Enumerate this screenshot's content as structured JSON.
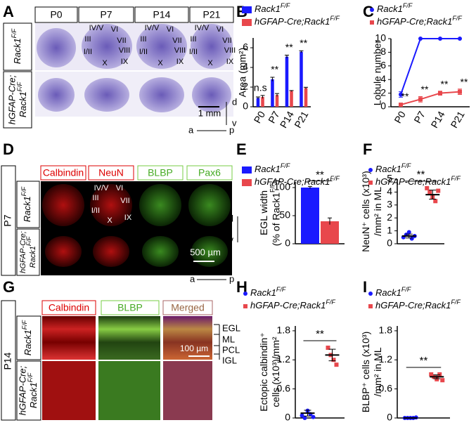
{
  "panel_labels": [
    "A",
    "B",
    "C",
    "D",
    "E",
    "F",
    "G",
    "H",
    "I"
  ],
  "panel_a": {
    "columns": [
      "P0",
      "P7",
      "P14",
      "P21"
    ],
    "rows": [
      [
        "Rack1F/F"
      ],
      [
        "hGFAP-Cre;",
        "Rack1F/F"
      ]
    ],
    "lobules": [
      "IV/V",
      "VI",
      "III",
      "VII",
      "I/II",
      "VIII",
      "X",
      "IX"
    ],
    "scale_bar": "1 mm",
    "axes": [
      "d",
      "v",
      "a",
      "p"
    ]
  },
  "panel_d": {
    "stains": [
      "Calbindin",
      "NeuN",
      "BLBP",
      "Pax6"
    ],
    "age": "P7",
    "rows": [
      [
        "Rack1F/F"
      ],
      [
        "hGFAP-Cre;",
        "Rack1F/F"
      ]
    ],
    "lobules": [
      "IV/V",
      "VI",
      "III",
      "VII",
      "I/II",
      "X",
      "IX"
    ],
    "scale_bar": "500 µm",
    "axes": [
      "d",
      "v",
      "a",
      "p"
    ]
  },
  "panel_g": {
    "stains": [
      "Calbindin",
      "BLBP",
      "Merged"
    ],
    "age": "P14",
    "rows": [
      [
        "Rack1F/F"
      ],
      [
        "hGFAP-Cre;",
        "Rack1F/F"
      ]
    ],
    "layers": [
      "EGL",
      "ML",
      "PCL",
      "IGL"
    ],
    "scale_bar": "100 µm"
  },
  "chart_data": [
    {
      "type": "bar",
      "ylabel": [
        "Area (mm²)"
      ],
      "categories": [
        "P0",
        "P7",
        "P14",
        "P21"
      ],
      "series": [
        {
          "name": "Rack1F/F",
          "color": "#1a1aff",
          "values": [
            0.9,
            2.8,
            5.1,
            5.6
          ],
          "errors": [
            0.1,
            0.2,
            0.15,
            0.1
          ]
        },
        {
          "name": "hGFAP-Cre;Rack1F/F",
          "color": "#e8474c",
          "values": [
            1.0,
            1.2,
            1.6,
            1.9
          ],
          "errors": [
            0.15,
            0.15,
            0.05,
            0.08
          ]
        }
      ],
      "significance": [
        "n.s",
        "**",
        "**",
        "**"
      ],
      "ylim": [
        0,
        7
      ],
      "yticks": [
        0,
        2,
        4,
        6
      ]
    },
    {
      "type": "line",
      "ylabel": [
        "Lobule number"
      ],
      "categories": [
        "P0",
        "P7",
        "P14",
        "P21"
      ],
      "series": [
        {
          "name": "Rack1F/F",
          "color": "#1a1aff",
          "values": [
            1.8,
            10,
            10,
            10
          ],
          "errors": [
            0.4,
            0,
            0,
            0
          ]
        },
        {
          "name": "hGFAP-Cre;Rack1F/F",
          "color": "#e8474c",
          "values": [
            0.3,
            1.1,
            2.0,
            2.2
          ],
          "errors": [
            0.2,
            0.4,
            0.3,
            0.4
          ]
        }
      ],
      "significance": [
        "**",
        "**",
        "**",
        "**"
      ],
      "ylim": [
        0,
        10
      ],
      "yticks": [
        0,
        2,
        4,
        6,
        8,
        10
      ]
    },
    {
      "type": "bar",
      "ylabel": [
        "EGL width",
        "(% of Rack1F/F)"
      ],
      "categories": [
        null
      ],
      "series": [
        {
          "name": "Rack1F/F",
          "color": "#1a1aff",
          "values": [
            100
          ],
          "errors": [
            2
          ]
        },
        {
          "name": "hGFAP-Cre;Rack1F/F",
          "color": "#e8474c",
          "values": [
            40
          ],
          "errors": [
            6
          ]
        }
      ],
      "significance": "**",
      "ylim": [
        0,
        110
      ],
      "yticks": [
        0,
        50,
        100
      ]
    },
    {
      "type": "scatter",
      "ylabel": [
        "NeuN⁺ cells (x10³)",
        "/mm² in ML"
      ],
      "series": [
        {
          "name": "Rack1F/F",
          "color": "#1a1aff",
          "values": [
            0.5,
            0.7,
            0.9,
            0.4,
            0.6
          ],
          "mean": 0.6,
          "error": 0.15
        },
        {
          "name": "hGFAP-Cre;Rack1F/F",
          "color": "#e8474c",
          "values": [
            4.3,
            4.0,
            3.6,
            3.3,
            4.1
          ],
          "mean": 3.8,
          "error": 0.35
        }
      ],
      "significance": "**",
      "ylim": [
        0,
        5
      ],
      "yticks": [
        0,
        1,
        2,
        3,
        4,
        5
      ]
    },
    {
      "type": "scatter",
      "ylabel": [
        "Ectopic calbindin⁺",
        "cells (x10³)/mm²"
      ],
      "series": [
        {
          "name": "Rack1F/F",
          "color": "#1a1aff",
          "values": [
            0.05,
            0.0,
            0.15,
            0.08,
            0.02
          ],
          "mean": 0.1,
          "error": 0.06
        },
        {
          "name": "hGFAP-Cre;Rack1F/F",
          "color": "#e8474c",
          "values": [
            1.45,
            1.3,
            1.2,
            1.1
          ],
          "mean": 1.3,
          "error": 0.12
        }
      ],
      "significance": "**",
      "ylim": [
        0,
        1.9
      ],
      "yticks": [
        0,
        0.6,
        1.2,
        1.8
      ]
    },
    {
      "type": "scatter",
      "ylabel": [
        "BLBP⁺ cells (x10³)",
        "/mm² in ML"
      ],
      "series": [
        {
          "name": "Rack1F/F",
          "color": "#1a1aff",
          "values": [
            0,
            0,
            0,
            0,
            0.01
          ],
          "mean": 0,
          "error": 0.005
        },
        {
          "name": "hGFAP-Cre;Rack1F/F",
          "color": "#e8474c",
          "values": [
            0.9,
            0.85,
            0.8,
            0.9,
            0.78
          ],
          "mean": 0.85,
          "error": 0.04
        }
      ],
      "significance": "**",
      "ylim": [
        0,
        1.9
      ],
      "yticks": [
        0,
        0.6,
        1.2,
        1.8
      ]
    }
  ]
}
